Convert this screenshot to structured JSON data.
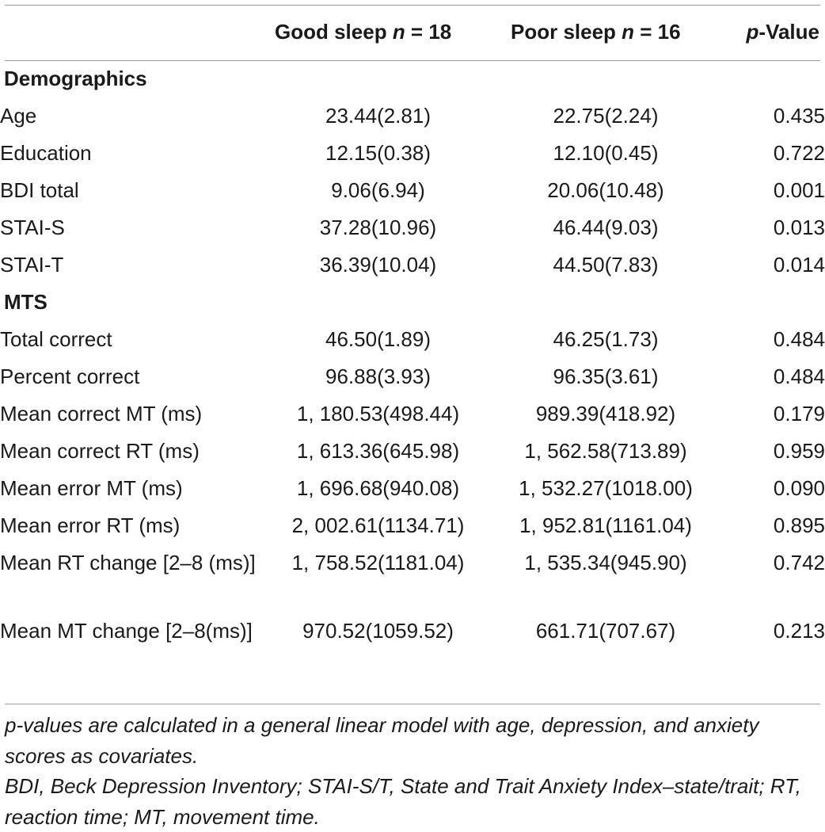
{
  "header": {
    "good_prefix": "Good sleep ",
    "good_n_italic": "n",
    "good_suffix": " = 18",
    "poor_prefix": "Poor sleep ",
    "poor_n_italic": "n",
    "poor_suffix": " = 16",
    "p_italic": "p",
    "p_suffix": "-Value"
  },
  "sections": [
    {
      "title": "Demographics",
      "rows": [
        {
          "label": "Age",
          "good": "23.44(2.81)",
          "poor": "22.75(2.24)",
          "p": "0.435"
        },
        {
          "label": "Education",
          "good": "12.15(0.38)",
          "poor": "12.10(0.45)",
          "p": "0.722"
        },
        {
          "label": "BDI total",
          "good": "9.06(6.94)",
          "poor": "20.06(10.48)",
          "p": "0.001"
        },
        {
          "label": "STAI-S",
          "good": "37.28(10.96)",
          "poor": "46.44(9.03)",
          "p": "0.013"
        },
        {
          "label": "STAI-T",
          "good": "36.39(10.04)",
          "poor": "44.50(7.83)",
          "p": "0.014"
        }
      ]
    },
    {
      "title": "MTS",
      "rows": [
        {
          "label": "Total correct",
          "good": "46.50(1.89)",
          "poor": "46.25(1.73)",
          "p": "0.484"
        },
        {
          "label": "Percent correct",
          "good": "96.88(3.93)",
          "poor": "96.35(3.61)",
          "p": "0.484"
        },
        {
          "label": "Mean correct MT (ms)",
          "good": "1, 180.53(498.44)",
          "poor": "989.39(418.92)",
          "p": "0.179"
        },
        {
          "label": "Mean correct RT (ms)",
          "good": "1, 613.36(645.98)",
          "poor": "1, 562.58(713.89)",
          "p": "0.959"
        },
        {
          "label": "Mean error MT (ms)",
          "good": "1, 696.68(940.08)",
          "poor": "1, 532.27(1018.00)",
          "p": "0.090"
        },
        {
          "label": "Mean error RT (ms)",
          "good": "2, 002.61(1134.71)",
          "poor": "1, 952.81(1161.04)",
          "p": "0.895"
        },
        {
          "label": "Mean RT change [2–8 (ms)]",
          "good": "1, 758.52(1181.04)",
          "poor": "1, 535.34(945.90)",
          "p": "0.742"
        },
        {
          "label": "Mean MT change [2–8(ms)]",
          "good": "970.52(1059.52)",
          "poor": "661.71(707.67)",
          "p": "0.213"
        }
      ]
    }
  ],
  "footnotes": [
    "p-values are calculated in a general linear model with age, depression, and anxiety scores as covariates.",
    "BDI, Beck Depression Inventory; STAI-S/T, State and Trait Anxiety Index–state/trait; RT, reaction time; MT, movement time."
  ]
}
